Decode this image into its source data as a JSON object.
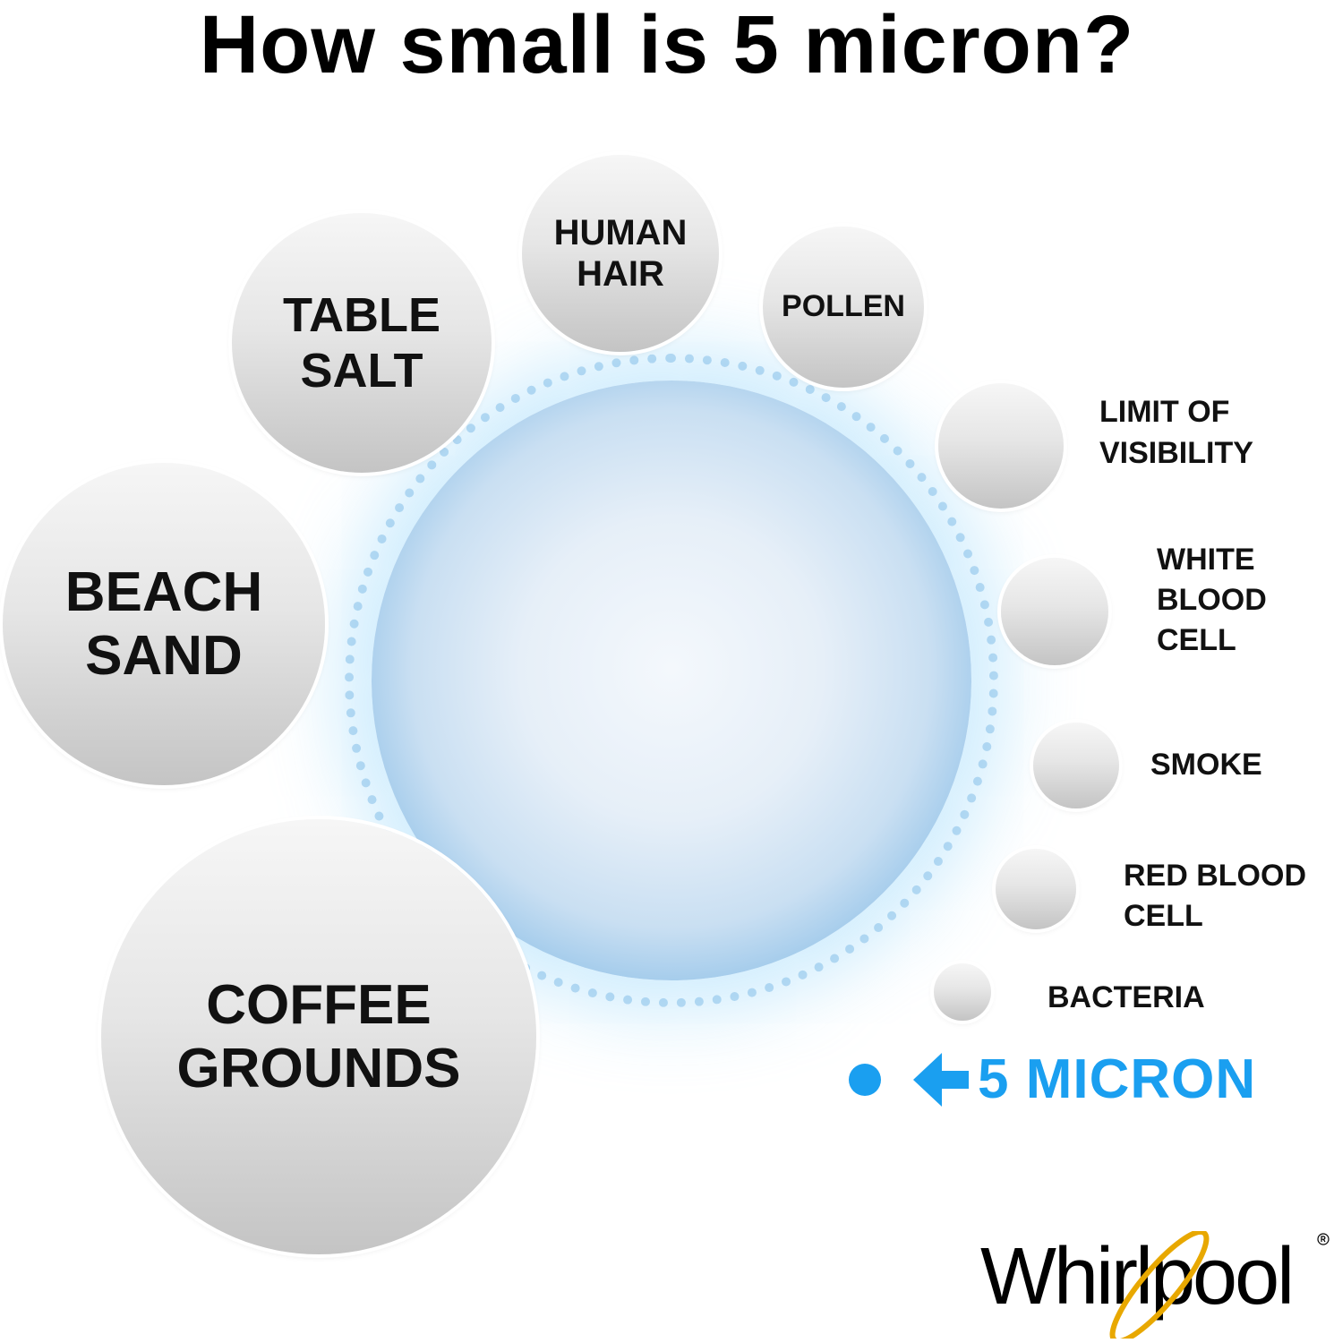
{
  "title": "How small is 5 micron?",
  "particles": [
    {
      "name": "table-salt",
      "label": "TABLE\nSALT"
    },
    {
      "name": "human-hair",
      "label": "HUMAN\nHAIR"
    },
    {
      "name": "pollen",
      "label": "POLLEN"
    },
    {
      "name": "beach-sand",
      "label": "BEACH\nSAND"
    },
    {
      "name": "coffee-grounds",
      "label": "COFFEE\nGROUNDS"
    },
    {
      "name": "limit-of-visibility",
      "label": "LIMIT OF\nVISIBILITY"
    },
    {
      "name": "white-blood-cell",
      "label": "WHITE\nBLOOD\nCELL"
    },
    {
      "name": "smoke",
      "label": "SMOKE"
    },
    {
      "name": "red-blood-cell",
      "label": "RED BLOOD\nCELL"
    },
    {
      "name": "bacteria",
      "label": "BACTERIA"
    }
  ],
  "micron_marker": {
    "label": "5 MICRON",
    "color": "#1a9ff0",
    "icon": "arrow-left-icon"
  },
  "brand": {
    "logo_text": "Whirlpool",
    "ring_color": "#e8a800"
  }
}
